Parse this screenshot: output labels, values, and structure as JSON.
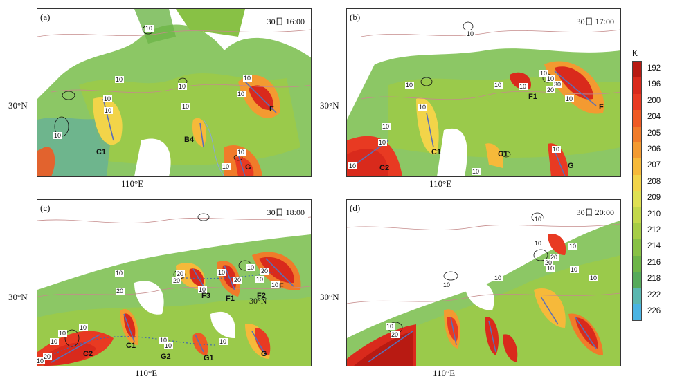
{
  "panels": [
    {
      "label": "(a)",
      "time": "30日 16:00",
      "features": [
        "C1",
        "B4",
        "F",
        "G"
      ],
      "contours": [
        "10",
        "10",
        "10",
        "10",
        "10",
        "10",
        "10",
        "10",
        "10",
        "10",
        "10"
      ]
    },
    {
      "label": "(b)",
      "time": "30日 17:00",
      "features": [
        "C1",
        "C2",
        "F1",
        "F",
        "G1",
        "G"
      ],
      "contours": [
        "10",
        "10",
        "10",
        "10",
        "10",
        "10",
        "10",
        "10",
        "10",
        "10",
        "30",
        "20",
        "10",
        "10",
        "10"
      ]
    },
    {
      "label": "(c)",
      "time": "30日 18:00",
      "features": [
        "C1",
        "C2",
        "G2",
        "G1",
        "G",
        "F3",
        "F1",
        "F2",
        "F"
      ],
      "contours": [
        "10",
        "10",
        "20",
        "10",
        "20",
        "10",
        "20",
        "10",
        "20",
        "10",
        "20",
        "10",
        "10",
        "10",
        "10",
        "10",
        "10",
        "20",
        "10"
      ]
    },
    {
      "label": "(d)",
      "time": "30日 20:00",
      "features": [],
      "contours": [
        "10",
        "10",
        "10",
        "20",
        "10",
        "20",
        "10",
        "10",
        "10",
        "10",
        "10",
        "20"
      ]
    }
  ],
  "axis_labels": {
    "lat_a": "30°N",
    "lat_b": "30°N",
    "lat_c": "30°N",
    "lat_d": "30°N",
    "lon_a": "110°E",
    "lon_b": "110°E",
    "lon_c": "110°E",
    "lon_d": "110°E",
    "lat_inner_c": "30°N"
  },
  "colorbar": {
    "unit": "K",
    "ticks": [
      "192",
      "196",
      "200",
      "204",
      "205",
      "206",
      "207",
      "208",
      "209",
      "210",
      "212",
      "214",
      "216",
      "218",
      "222",
      "226"
    ],
    "colors": [
      "#b81a12",
      "#d92a1c",
      "#e83a22",
      "#ee5a24",
      "#f07b2a",
      "#f39a31",
      "#f6b93a",
      "#f2d449",
      "#dfe052",
      "#c3d84b",
      "#a6cd46",
      "#88c145",
      "#6db548",
      "#56aa5b",
      "#5ab7b0",
      "#4ab4e3"
    ]
  }
}
